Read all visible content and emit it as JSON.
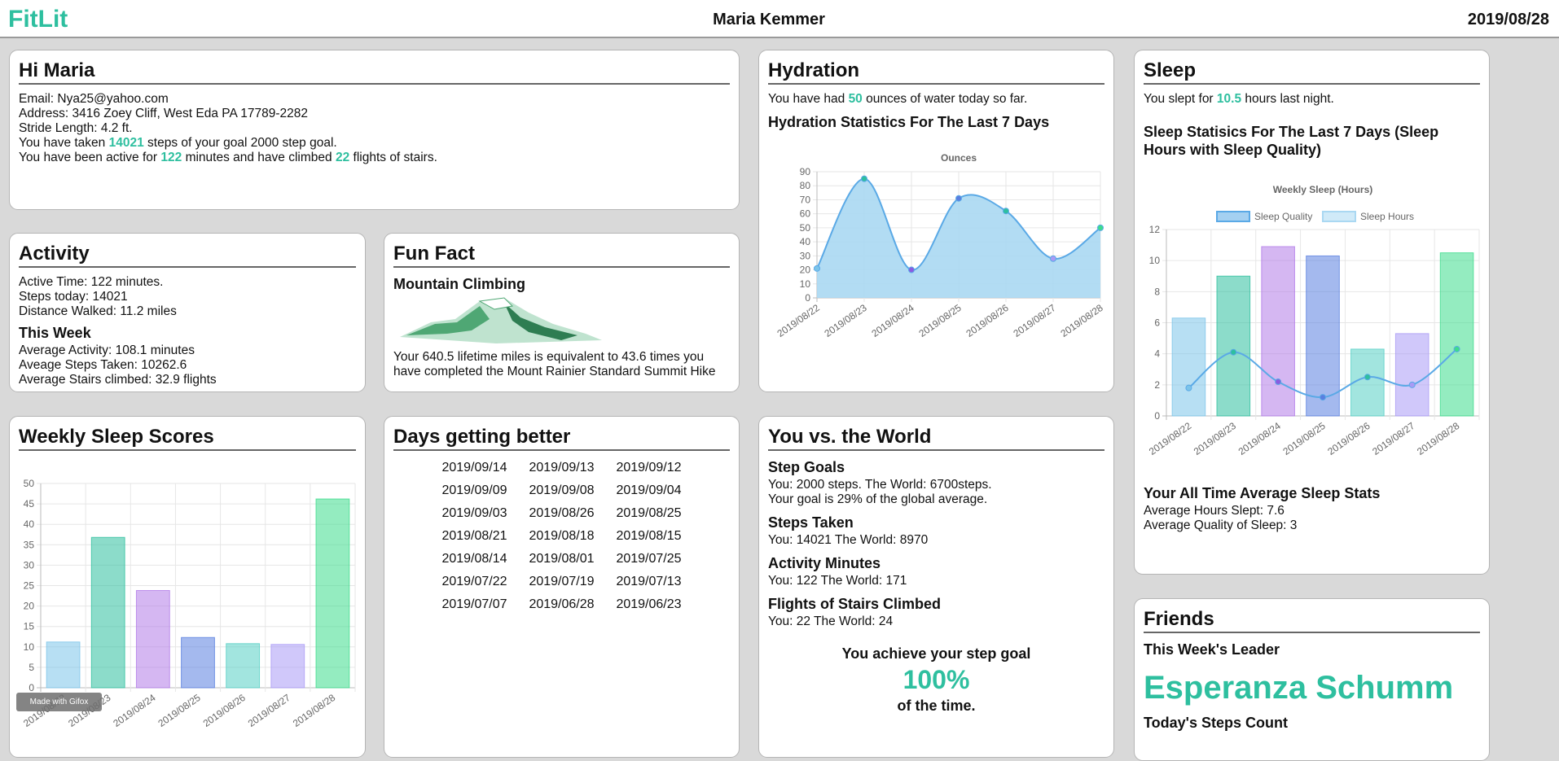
{
  "header": {
    "logo": "FitLit",
    "user": "Maria Kemmer",
    "date": "2019/08/28"
  },
  "profile": {
    "title": "Hi Maria",
    "email": "Email: Nya25@yahoo.com",
    "address": "Address: 3416 Zoey Cliff, West Eda PA 17789-2282",
    "stride": "Stride Length: 4.2 ft.",
    "steps": {
      "before": "You have taken",
      "value": "14021",
      "after": "steps of your goal 2000 step goal."
    },
    "active": {
      "before": "You have been active for",
      "minutes": "122",
      "middle": "minutes and have climbed",
      "flights": "22",
      "after": "flights of stairs."
    }
  },
  "activity": {
    "title": "Activity",
    "lines": [
      "Active Time: 122 minutes.",
      "Steps today: 14021",
      "Distance Walked: 11.2 miles"
    ],
    "week_title": "This Week",
    "week_lines": [
      "Average Activity: 108.1 minutes",
      "Aveage Steps Taken: 10262.6",
      "Average Stairs climbed: 32.9 flights"
    ]
  },
  "fun_fact": {
    "title": "Fun Fact",
    "subtitle": "Mountain Climbing",
    "text": "Your 640.5 lifetime miles is equivalent to 43.6 times you have completed the Mount Rainier Standard Summit Hike"
  },
  "hydration": {
    "title": "Hydration",
    "today": {
      "before": "You have had",
      "value": "50",
      "after": "ounces of water today so far."
    },
    "subtitle": "Hydration Statistics For The Last 7 Days"
  },
  "sleep": {
    "title": "Sleep",
    "today": {
      "before": "You slept for",
      "value": "10.5",
      "after": "hours last night."
    },
    "subtitle": "Sleep Statisics For The Last 7 Days (Sleep Hours with Sleep Quality)",
    "all_time_title": "Your All Time Average Sleep Stats",
    "all_time_lines": [
      "Average Hours Slept: 7.6",
      "Average Quality of Sleep: 3"
    ]
  },
  "sleep_scores": {
    "title": "Weekly Sleep Scores"
  },
  "days_better": {
    "title": "Days getting better",
    "dates": [
      "2019/09/14",
      "2019/09/13",
      "2019/09/12",
      "2019/09/09",
      "2019/09/08",
      "2019/09/04",
      "2019/09/03",
      "2019/08/26",
      "2019/08/25",
      "2019/08/21",
      "2019/08/18",
      "2019/08/15",
      "2019/08/14",
      "2019/08/01",
      "2019/07/25",
      "2019/07/22",
      "2019/07/19",
      "2019/07/13",
      "2019/07/07",
      "2019/06/28",
      "2019/06/23"
    ]
  },
  "world": {
    "title": "You vs. the World",
    "sections": [
      {
        "heading": "Step Goals",
        "lines": [
          "You: 2000 steps. The World: 6700steps.",
          "Your goal is 29% of the global average."
        ]
      },
      {
        "heading": "Steps Taken",
        "lines": [
          "You: 14021 The World: 8970"
        ]
      },
      {
        "heading": "Activity Minutes",
        "lines": [
          "You: 122 The World: 171"
        ]
      },
      {
        "heading": "Flights of Stairs Climbed",
        "lines": [
          "You: 22 The World: 24"
        ]
      }
    ],
    "goal_before": "You achieve your step goal",
    "goal_value": "100%",
    "goal_after": "of the time."
  },
  "friends": {
    "title": "Friends",
    "leader_label": "This Week's Leader",
    "leader": "Esperanza Schumm",
    "steps_label": "Today's Steps Count"
  },
  "watermark": "Made with Gifox",
  "chart_data": [
    {
      "type": "line",
      "title": "Ounces",
      "categories": [
        "2019/08/22",
        "2019/08/23",
        "2019/08/24",
        "2019/08/25",
        "2019/08/26",
        "2019/08/27",
        "2019/08/28"
      ],
      "values": [
        21,
        85,
        20,
        71,
        62,
        28,
        50
      ],
      "color": "#5aa9e6",
      "fill": "#aad8f2",
      "point_colors": [
        "#7cc4ea",
        "#2ebf9f",
        "#8a5ce0",
        "#5a7fe0",
        "#2ebf9f",
        "#a99af5",
        "#3ddc8c"
      ],
      "ylim": [
        0,
        90
      ],
      "yticks": [
        0,
        10,
        20,
        30,
        40,
        50,
        60,
        70,
        80,
        90
      ],
      "grid": true
    },
    {
      "type": "bar",
      "title": "Weekly Sleep (Hours)",
      "categories": [
        "2019/08/22",
        "2019/08/23",
        "2019/08/24",
        "2019/08/25",
        "2019/08/26",
        "2019/08/27",
        "2019/08/28"
      ],
      "series": [
        {
          "name": "Sleep Quality",
          "type": "line",
          "color": "#5aa9e6",
          "values": [
            1.8,
            4.1,
            2.2,
            1.2,
            2.5,
            2.0,
            4.3
          ],
          "point_colors": [
            "#7cc4ea",
            "#2ebf9f",
            "#8a5ce0",
            "#5a7fe0",
            "#2ebf9f",
            "#a99af5",
            "#3ddc8c"
          ]
        },
        {
          "name": "Sleep Hours",
          "type": "bar",
          "color": "#aad8f2",
          "values": [
            6.3,
            9.0,
            10.9,
            10.3,
            4.3,
            5.3,
            10.5
          ],
          "colors": [
            "#7cc4ea",
            "#2ebf9f",
            "#b27be8",
            "#5a7fe0",
            "#56cfc5",
            "#a99af5",
            "#3ddc8c"
          ]
        }
      ],
      "ylim": [
        0,
        12
      ],
      "yticks": [
        0,
        2,
        4,
        6,
        8,
        10,
        12
      ],
      "grid": true,
      "legend": "top"
    },
    {
      "type": "bar",
      "categories": [
        "2019/08/22",
        "2019/08/23",
        "2019/08/24",
        "2019/08/25",
        "2019/08/26",
        "2019/08/27",
        "2019/08/28"
      ],
      "values": [
        11.2,
        36.8,
        23.8,
        12.3,
        10.8,
        10.6,
        46.2
      ],
      "colors": [
        "#7cc4ea",
        "#2ebf9f",
        "#b27be8",
        "#5a7fe0",
        "#56cfc5",
        "#a99af5",
        "#3ddc8c"
      ],
      "ylim": [
        0,
        50
      ],
      "yticks": [
        0,
        5,
        10,
        15,
        20,
        25,
        30,
        35,
        40,
        45,
        50
      ],
      "grid": true
    }
  ]
}
